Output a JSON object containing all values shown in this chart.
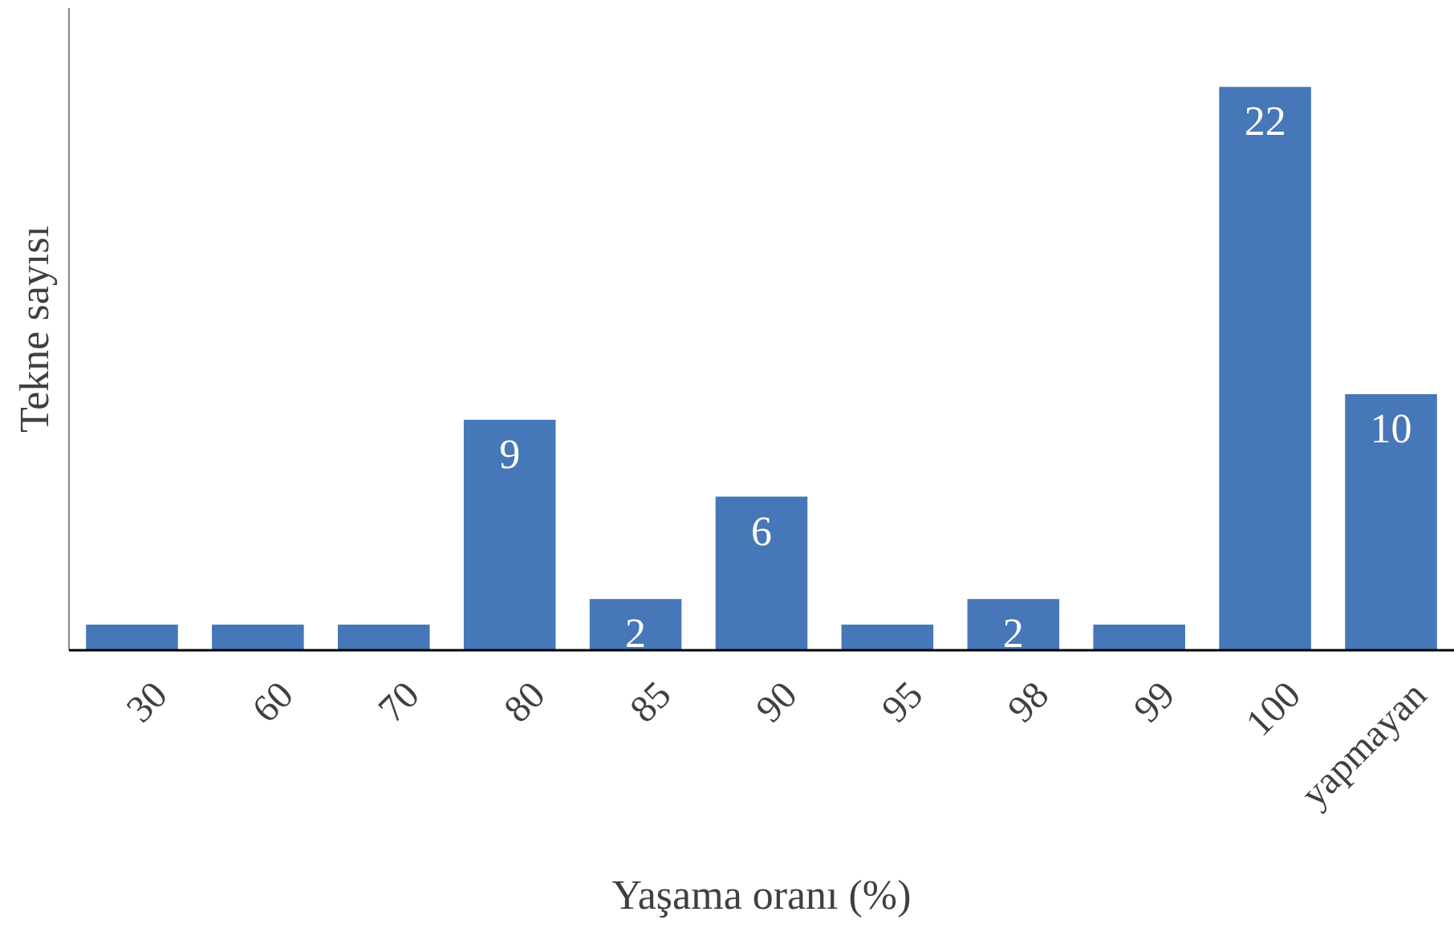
{
  "chart_data": {
    "type": "bar",
    "xlabel": "Yaşama oranı (%)",
    "ylabel": "Tekne sayısı",
    "categories": [
      "30",
      "60",
      "70",
      "80",
      "85",
      "90",
      "95",
      "98",
      "99",
      "100",
      "yapmayan"
    ],
    "values": [
      1,
      1,
      1,
      9,
      2,
      6,
      1,
      2,
      1,
      22,
      10
    ],
    "value_labels": [
      null,
      null,
      null,
      "9",
      "2",
      "6",
      null,
      "2",
      null,
      "22",
      "10"
    ],
    "color": "#4677b8"
  }
}
